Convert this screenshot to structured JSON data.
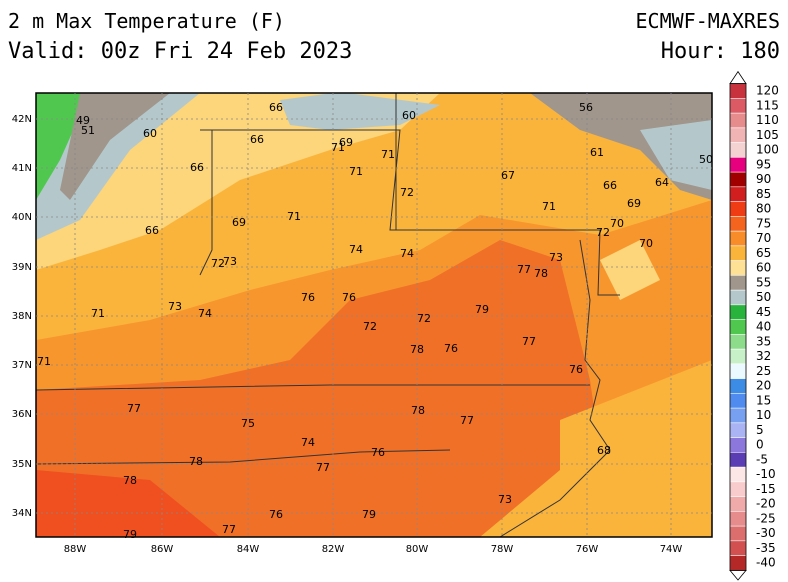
{
  "header": {
    "title": "2 m Max Temperature (F)",
    "valid": "Valid: 00z Fri 24 Feb 2023",
    "model": "ECMWF-MAXRES",
    "hour": "Hour: 180"
  },
  "axes": {
    "longitudes": [
      "88W",
      "86W",
      "84W",
      "82W",
      "80W",
      "78W",
      "76W",
      "74W"
    ],
    "latitudes": [
      "42N",
      "41N",
      "40N",
      "39N",
      "38N",
      "37N",
      "36N",
      "35N",
      "34N"
    ]
  },
  "colorbar": {
    "labels": [
      120,
      115,
      110,
      105,
      100,
      95,
      90,
      85,
      80,
      75,
      70,
      65,
      60,
      55,
      50,
      45,
      40,
      35,
      32,
      25,
      20,
      15,
      10,
      5,
      0,
      -5,
      -10,
      -15,
      -20,
      -25,
      -30,
      -35,
      -40
    ],
    "colors": [
      "#c8323c",
      "#dc5a64",
      "#e68c8c",
      "#f0b4b4",
      "#f5d2d2",
      "#e6007e",
      "#a00000",
      "#d21e1e",
      "#f03c14",
      "#f5641e",
      "#f88c28",
      "#fab43c",
      "#ffe196",
      "#a0968c",
      "#b4c8cc",
      "#28b43c",
      "#50c850",
      "#8cdc8c",
      "#c8f0c8",
      "#ebfaff",
      "#3c8ce6",
      "#508cf0",
      "#78a0f0",
      "#aab4f5",
      "#8c78dc",
      "#5a3cb4",
      "#fce6e6",
      "#f8cccc",
      "#f0aaaa",
      "#e68c8c",
      "#dc6e6e",
      "#d25050",
      "#b42828"
    ]
  },
  "stations": [
    49,
    51,
    60,
    66,
    66,
    71,
    69,
    60,
    56,
    61,
    66,
    71,
    71,
    67,
    66,
    64,
    50,
    72,
    69,
    66,
    69,
    71,
    71,
    70,
    72,
    70,
    74,
    74,
    72,
    73,
    78,
    77,
    73,
    76,
    76,
    73,
    74,
    71,
    79,
    72,
    72,
    77,
    78,
    76,
    71,
    76,
    77,
    78,
    77,
    75,
    74,
    76,
    68,
    78,
    77,
    78,
    73,
    76,
    79,
    79,
    77
  ]
}
